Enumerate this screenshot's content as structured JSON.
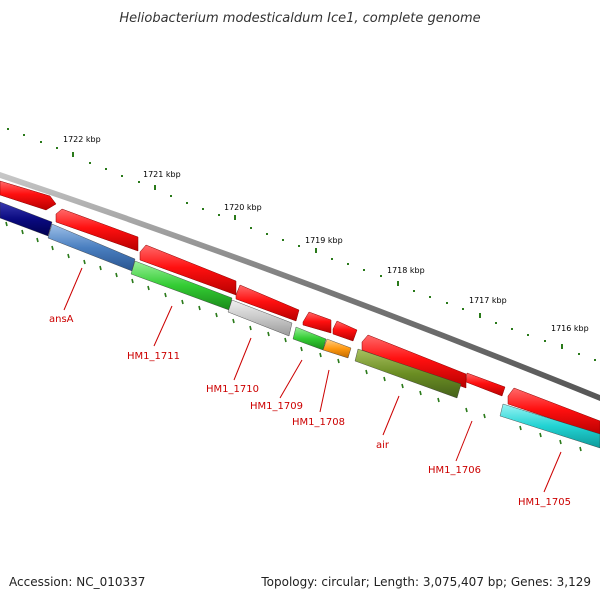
{
  "title": "Heliobacterium modesticaldum Ice1, complete genome",
  "accession": "Accession: NC_010337",
  "topology": "Topology: circular; Length: 3,075,407 bp; Genes: 3,129",
  "colors": {
    "backbone": "#8a8a8a",
    "tick": "#2a7a1a",
    "label": "#cc0000",
    "cds_forward": "#ff1010"
  },
  "kbp_labels": [
    "1722 kbp",
    "1721 kbp",
    "1720 kbp",
    "1719 kbp",
    "1718 kbp",
    "1717 kbp",
    "1716 kbp"
  ],
  "forward_genes": [
    {
      "id": "f1"
    },
    {
      "id": "f2"
    },
    {
      "id": "f3"
    },
    {
      "id": "f4"
    },
    {
      "id": "f5"
    },
    {
      "id": "f6"
    },
    {
      "id": "f7"
    },
    {
      "id": "f8"
    },
    {
      "id": "f9"
    }
  ],
  "reverse_genes": [
    {
      "name": "",
      "color": "#0a0a80"
    },
    {
      "name": "ansA",
      "color": "#4a7fc0"
    },
    {
      "name": "HM1_1711",
      "color": "#33cc33"
    },
    {
      "name": "HM1_1710",
      "color": "#c8c8c8"
    },
    {
      "name": "HM1_1709",
      "color": "#33cc33"
    },
    {
      "name": "HM1_1708",
      "color": "#ff9910"
    },
    {
      "name": "air",
      "color": "#6b8e23"
    },
    {
      "name": "HM1_1706",
      "color": "#ffffff"
    },
    {
      "name": "HM1_1705",
      "color": "#22d3d3"
    }
  ]
}
